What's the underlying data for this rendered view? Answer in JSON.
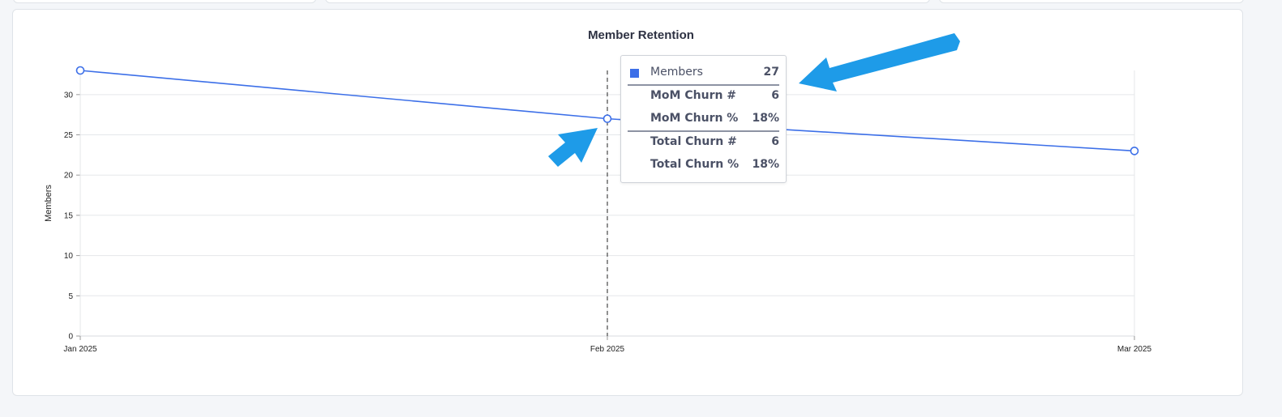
{
  "chart_data": {
    "type": "line",
    "title": "Member Retention",
    "ylabel": "Members",
    "categories": [
      "Jan 2025",
      "Feb 2025",
      "Mar 2025"
    ],
    "series": [
      {
        "name": "Members",
        "values": [
          33,
          27,
          23
        ]
      }
    ],
    "ylim": [
      0,
      33
    ],
    "yticks": [
      0,
      5,
      10,
      15,
      20,
      25,
      30
    ],
    "grid": true,
    "hover_index": 1,
    "line_color": "#3c6fe8"
  },
  "tooltip": {
    "series_label": "Members",
    "series_value": "27",
    "rows": [
      {
        "label": "MoM Churn #",
        "value": "6"
      },
      {
        "label": "MoM Churn %",
        "value": "18%"
      },
      {
        "label": "Total Churn #",
        "value": "6"
      },
      {
        "label": "Total Churn %",
        "value": "18%"
      }
    ]
  },
  "annotation_color": "#1e9be8"
}
